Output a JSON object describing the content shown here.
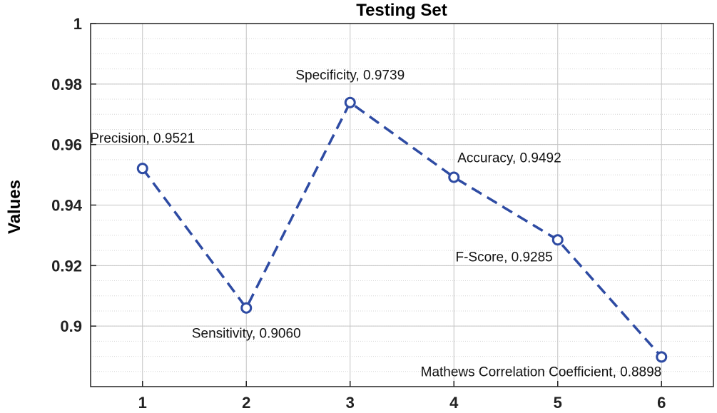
{
  "chart_data": {
    "type": "line",
    "title": "Testing Set",
    "xlabel": "",
    "ylabel": "Values",
    "x": [
      1,
      2,
      3,
      4,
      5,
      6
    ],
    "x_ticks": [
      "1",
      "2",
      "3",
      "4",
      "5",
      "6"
    ],
    "xlim": [
      0.5,
      6.5
    ],
    "ylim": [
      0.88,
      1.0
    ],
    "y_ticks": [
      0.9,
      0.92,
      0.94,
      0.96,
      0.98,
      1.0
    ],
    "y_tick_labels": [
      "0.9",
      "0.92",
      "0.94",
      "0.96",
      "0.98",
      "1"
    ],
    "grid": true,
    "minor_grid": true,
    "series": [
      {
        "name": "Testing Set",
        "values": [
          0.9521,
          0.906,
          0.9739,
          0.9492,
          0.9285,
          0.8898
        ],
        "color": "#2e4ba3",
        "line_style": "dashed",
        "marker": "circle"
      }
    ],
    "data_labels": [
      "Precision, 0.9521",
      "Sensitivity, 0.9060",
      "Specificity, 0.9739",
      "Accuracy, 0.9492",
      "F-Score, 0.9285",
      "Mathews Correlation Coefficient, 0.8898"
    ]
  }
}
